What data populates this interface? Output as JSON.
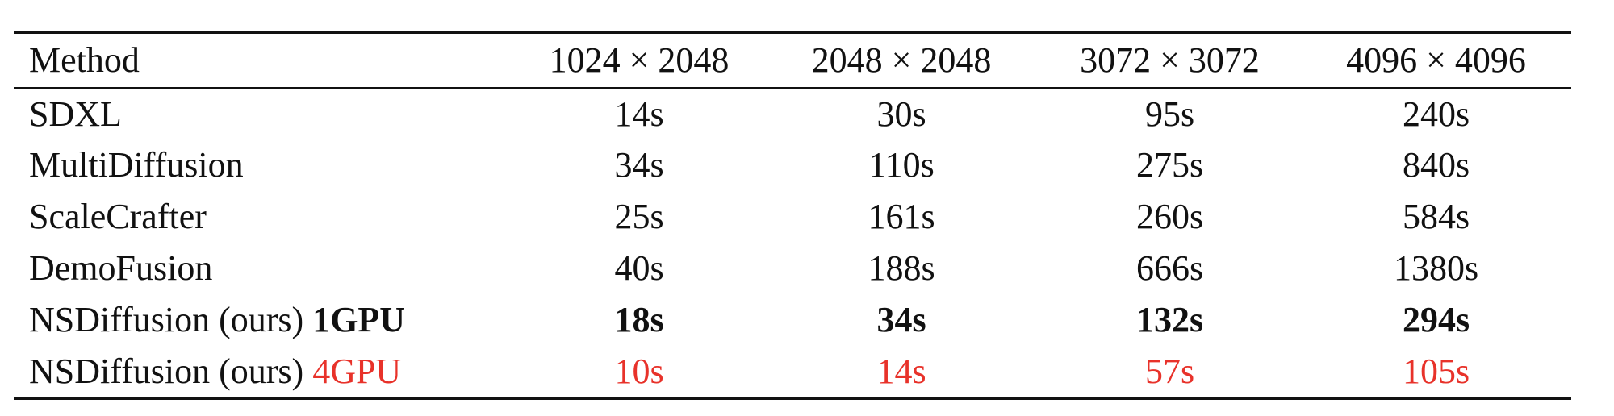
{
  "table": {
    "headers": [
      "Method",
      "1024 × 2048",
      "2048 × 2048",
      "3072 × 3072",
      "4096 × 4096"
    ],
    "rows": [
      {
        "method": "SDXL",
        "suffix": "",
        "values": [
          "14s",
          "30s",
          "95s",
          "240s"
        ]
      },
      {
        "method": "MultiDiffusion",
        "suffix": "",
        "values": [
          "34s",
          "110s",
          "275s",
          "840s"
        ]
      },
      {
        "method": "ScaleCrafter",
        "suffix": "",
        "values": [
          "25s",
          "161s",
          "260s",
          "584s"
        ]
      },
      {
        "method": "DemoFusion",
        "suffix": "",
        "values": [
          "40s",
          "188s",
          "666s",
          "1380s"
        ]
      },
      {
        "method": "NSDiffusion (ours)",
        "suffix": "1GPU",
        "values": [
          "18s",
          "34s",
          "132s",
          "294s"
        ]
      },
      {
        "method": "NSDiffusion (ours)",
        "suffix": "4GPU",
        "values": [
          "10s",
          "14s",
          "57s",
          "105s"
        ]
      }
    ]
  },
  "colors": {
    "text": "#111111",
    "highlight_red": "#e8322a"
  }
}
